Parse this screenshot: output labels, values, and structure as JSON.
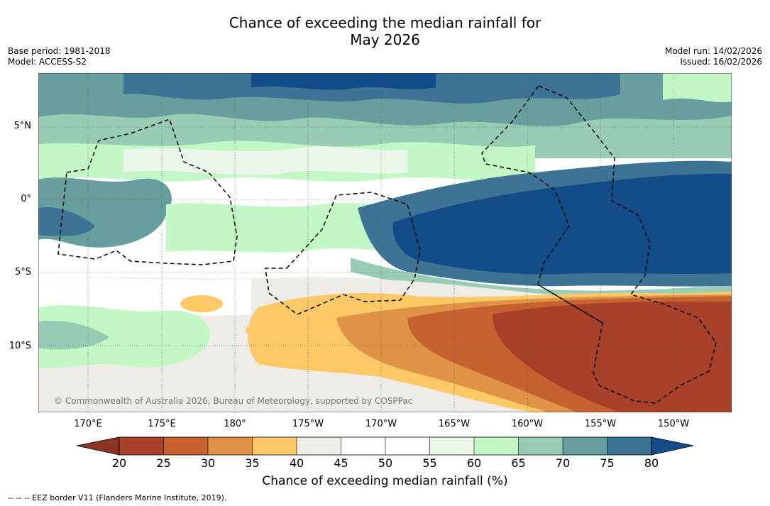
{
  "title": {
    "line1": "Chance of exceeding the median rainfall for",
    "line2": "May 2026"
  },
  "meta_left": {
    "base_period": "Base period: 1981-2018",
    "model": "Model: ACCESS-S2"
  },
  "meta_right": {
    "model_run": "Model run: 14/02/2026",
    "issued": "Issued: 16/02/2026"
  },
  "map": {
    "latitude_labels": [
      "5°N",
      "0°",
      "5°S",
      "10°S"
    ],
    "longitude_labels": [
      "170°E",
      "175°E",
      "180°",
      "175°W",
      "170°W",
      "165°W",
      "160°W",
      "155°W",
      "150°W"
    ],
    "copyright": "© Commonwealth of Australia 2026, Bureau of Meteorology, supported by COSPPac",
    "colors": {
      "c20": "#a7412a",
      "c25": "#c56230",
      "c30": "#e09347",
      "c35": "#fdc865",
      "c40": "#efebe6",
      "c45": "#ffffff",
      "c50": "#ffffff",
      "c55": "#e9f6e9",
      "c60": "#c4f7c6",
      "c65": "#98ccb4",
      "c70": "#679f9f",
      "c75": "#3d7395",
      "c80": "#124c89",
      "below20": "#8c3522"
    }
  },
  "colorbar": {
    "ticks": [
      "20",
      "25",
      "30",
      "35",
      "40",
      "45",
      "50",
      "55",
      "60",
      "65",
      "70",
      "75",
      "80"
    ],
    "title": "Chance of exceeding median rainfall (%)"
  },
  "footnote": "--  --  -- EEZ border V11 (Flanders Marine Institute, 2019)."
}
